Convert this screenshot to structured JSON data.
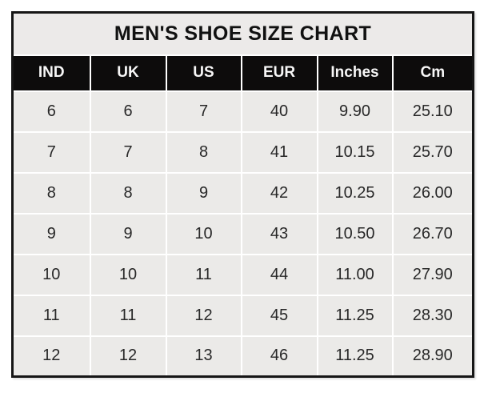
{
  "chart_data": {
    "type": "table",
    "title": "MEN'S SHOE SIZE CHART",
    "columns": [
      "IND",
      "UK",
      "US",
      "EUR",
      "Inches",
      "Cm"
    ],
    "rows": [
      [
        "6",
        "6",
        "7",
        "40",
        "9.90",
        "25.10"
      ],
      [
        "7",
        "7",
        "8",
        "41",
        "10.15",
        "25.70"
      ],
      [
        "8",
        "8",
        "9",
        "42",
        "10.25",
        "26.00"
      ],
      [
        "9",
        "9",
        "10",
        "43",
        "10.50",
        "26.70"
      ],
      [
        "10",
        "10",
        "11",
        "44",
        "11.00",
        "27.90"
      ],
      [
        "11",
        "11",
        "12",
        "45",
        "11.25",
        "28.30"
      ],
      [
        "12",
        "12",
        "13",
        "46",
        "11.25",
        "28.90"
      ]
    ]
  },
  "colors": {
    "page_bg": "#ffffff",
    "title_bg": "#eceae9",
    "header_bg": "#0d0c0c",
    "header_text": "#f7f7f7",
    "cell_bg": "#ebeae8",
    "border": "#161616",
    "gap": "#ffffff",
    "data_text": "#282828"
  }
}
